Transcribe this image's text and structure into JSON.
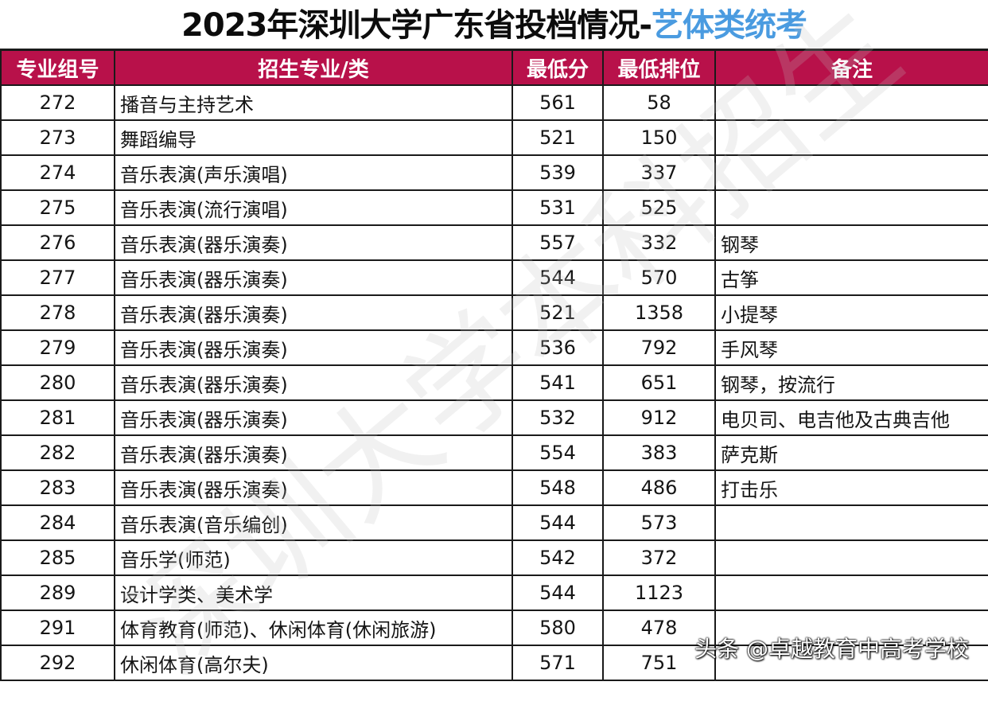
{
  "title": {
    "main": "2023年深圳大学广东省投档情况-",
    "accent": "艺体类统考",
    "accent_color": "#4a9be0"
  },
  "table": {
    "header_color": "#b8114a",
    "headers": [
      "专业组号",
      "招生专业/类",
      "最低分",
      "最低排位",
      "备注"
    ],
    "rows": [
      {
        "group": "272",
        "major": "播音与主持艺术",
        "min_score": "561",
        "min_rank": "58",
        "note": ""
      },
      {
        "group": "273",
        "major": "舞蹈编导",
        "min_score": "521",
        "min_rank": "150",
        "note": ""
      },
      {
        "group": "274",
        "major": "音乐表演(声乐演唱)",
        "min_score": "539",
        "min_rank": "337",
        "note": ""
      },
      {
        "group": "275",
        "major": "音乐表演(流行演唱)",
        "min_score": "531",
        "min_rank": "525",
        "note": ""
      },
      {
        "group": "276",
        "major": "音乐表演(器乐演奏)",
        "min_score": "557",
        "min_rank": "332",
        "note": "钢琴"
      },
      {
        "group": "277",
        "major": "音乐表演(器乐演奏)",
        "min_score": "544",
        "min_rank": "570",
        "note": "古筝"
      },
      {
        "group": "278",
        "major": "音乐表演(器乐演奏)",
        "min_score": "521",
        "min_rank": "1358",
        "note": "小提琴"
      },
      {
        "group": "279",
        "major": "音乐表演(器乐演奏)",
        "min_score": "536",
        "min_rank": "792",
        "note": "手风琴"
      },
      {
        "group": "280",
        "major": "音乐表演(器乐演奏)",
        "min_score": "541",
        "min_rank": "651",
        "note": "钢琴，按流行"
      },
      {
        "group": "281",
        "major": "音乐表演(器乐演奏)",
        "min_score": "532",
        "min_rank": "912",
        "note": "电贝司、电吉他及古典吉他"
      },
      {
        "group": "282",
        "major": "音乐表演(器乐演奏)",
        "min_score": "554",
        "min_rank": "383",
        "note": "萨克斯"
      },
      {
        "group": "283",
        "major": "音乐表演(器乐演奏)",
        "min_score": "548",
        "min_rank": "486",
        "note": "打击乐"
      },
      {
        "group": "284",
        "major": "音乐表演(音乐编创)",
        "min_score": "544",
        "min_rank": "573",
        "note": ""
      },
      {
        "group": "285",
        "major": "音乐学(师范)",
        "min_score": "542",
        "min_rank": "372",
        "note": ""
      },
      {
        "group": "289",
        "major": "设计学类、美术学",
        "min_score": "544",
        "min_rank": "1123",
        "note": ""
      },
      {
        "group": "291",
        "major": "体育教育(师范)、休闲体育(休闲旅游)",
        "min_score": "580",
        "min_rank": "478",
        "note": ""
      },
      {
        "group": "292",
        "major": "休闲体育(高尔夫)",
        "min_score": "571",
        "min_rank": "751",
        "note": ""
      }
    ]
  },
  "watermark": "深圳大学本科招生",
  "footer_watermark": "头条 @卓越教育中高考学校"
}
